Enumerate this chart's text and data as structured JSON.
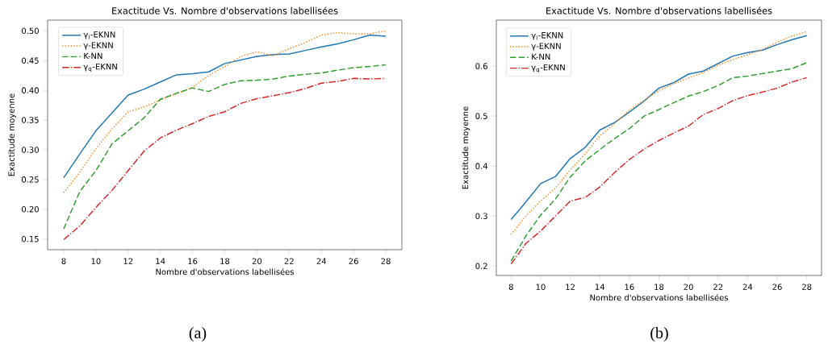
{
  "chart_data": [
    {
      "type": "line",
      "title": "Exactitude Vs. Nombre d'observations labellisées",
      "xlabel": "Nombre d'observations labellisées",
      "ylabel": "Exactitude moyenne",
      "x": [
        8,
        9,
        10,
        11,
        12,
        13,
        14,
        15,
        16,
        17,
        18,
        19,
        20,
        21,
        22,
        23,
        24,
        25,
        26,
        27,
        28
      ],
      "series": [
        {
          "name": "γ$_{l}$-EKNN",
          "color": "#1f77b4",
          "line_style": "solid",
          "values": [
            0.253,
            0.293,
            0.332,
            0.362,
            0.392,
            0.402,
            0.414,
            0.426,
            0.428,
            0.431,
            0.445,
            0.451,
            0.457,
            0.46,
            0.461,
            0.467,
            0.473,
            0.478,
            0.485,
            0.493,
            0.491
          ]
        },
        {
          "name": "γ-EKNN",
          "color": "#ff7f0e",
          "line_style": "dotted",
          "values": [
            0.228,
            0.262,
            0.302,
            0.335,
            0.364,
            0.372,
            0.384,
            0.394,
            0.405,
            0.425,
            0.44,
            0.457,
            0.465,
            0.458,
            0.47,
            0.48,
            0.493,
            0.497,
            0.495,
            0.495,
            0.5
          ]
        },
        {
          "name": "K-NN",
          "color": "#2ca02c",
          "line_style": "dashed",
          "values": [
            0.167,
            0.23,
            0.265,
            0.31,
            0.332,
            0.354,
            0.385,
            0.395,
            0.404,
            0.398,
            0.41,
            0.416,
            0.417,
            0.419,
            0.424,
            0.427,
            0.429,
            0.434,
            0.438,
            0.44,
            0.443
          ]
        },
        {
          "name": "γ$_{q}$-EKNN",
          "color": "#d62728",
          "line_style": "dashdot",
          "values": [
            0.149,
            0.172,
            0.203,
            0.232,
            0.265,
            0.298,
            0.32,
            0.333,
            0.344,
            0.356,
            0.364,
            0.378,
            0.386,
            0.391,
            0.396,
            0.403,
            0.412,
            0.415,
            0.42,
            0.419,
            0.42
          ]
        }
      ],
      "xlim": [
        7,
        29
      ],
      "ylim": [
        0.132,
        0.518
      ],
      "xticks": [
        8,
        10,
        12,
        14,
        16,
        18,
        20,
        22,
        24,
        26,
        28
      ],
      "yticks": [
        0.15,
        {
          "value": 0.2,
          "label": "0.20"
        },
        0.25,
        {
          "value": 0.3,
          "label": "0.30"
        },
        0.35,
        {
          "value": 0.4,
          "label": "0.40"
        },
        0.45,
        {
          "value": 0.5,
          "label": "0.50"
        }
      ],
      "legend": "top left",
      "annotations": [
        "(a)"
      ]
    },
    {
      "type": "line",
      "title": "Exactitude Vs. Nombre d'observations labellisées",
      "xlabel": "Nombre d'observations labellisées",
      "ylabel": "Exactitude moyenne",
      "x": [
        8,
        9,
        10,
        11,
        12,
        13,
        14,
        15,
        16,
        17,
        18,
        19,
        20,
        21,
        22,
        23,
        24,
        25,
        26,
        27,
        28
      ],
      "series": [
        {
          "name": "γ$_{l}$-EKNN",
          "color": "#1f77b4",
          "line_style": "solid",
          "values": [
            0.293,
            0.328,
            0.365,
            0.379,
            0.415,
            0.437,
            0.472,
            0.487,
            0.508,
            0.53,
            0.556,
            0.567,
            0.584,
            0.59,
            0.605,
            0.62,
            0.627,
            0.632,
            0.643,
            0.653,
            0.661
          ]
        },
        {
          "name": "γ-EKNN",
          "color": "#ff7f0e",
          "line_style": "dotted",
          "values": [
            0.263,
            0.3,
            0.33,
            0.356,
            0.392,
            0.424,
            0.46,
            0.485,
            0.512,
            0.532,
            0.551,
            0.565,
            0.576,
            0.587,
            0.602,
            0.613,
            0.623,
            0.633,
            0.648,
            0.66,
            0.669
          ]
        },
        {
          "name": "K-NN",
          "color": "#2ca02c",
          "line_style": "dashed",
          "values": [
            0.21,
            0.26,
            0.302,
            0.334,
            0.378,
            0.41,
            0.433,
            0.455,
            0.475,
            0.5,
            0.513,
            0.527,
            0.54,
            0.549,
            0.561,
            0.577,
            0.58,
            0.585,
            0.59,
            0.595,
            0.607
          ]
        },
        {
          "name": "γ$_{q}$-EKNN",
          "color": "#d62728",
          "line_style": "dashdot",
          "values": [
            0.204,
            0.245,
            0.27,
            0.3,
            0.33,
            0.337,
            0.358,
            0.387,
            0.413,
            0.434,
            0.451,
            0.466,
            0.48,
            0.503,
            0.515,
            0.531,
            0.541,
            0.548,
            0.556,
            0.568,
            0.577
          ]
        }
      ],
      "xlim": [
        7,
        29
      ],
      "ylim": [
        0.181,
        0.692
      ],
      "xticks": [
        8,
        10,
        12,
        14,
        16,
        18,
        20,
        22,
        24,
        26,
        28
      ],
      "yticks": [
        0.2,
        0.3,
        0.4,
        0.5,
        0.6
      ],
      "legend": "top left",
      "annotations": [
        "(b)"
      ]
    }
  ]
}
